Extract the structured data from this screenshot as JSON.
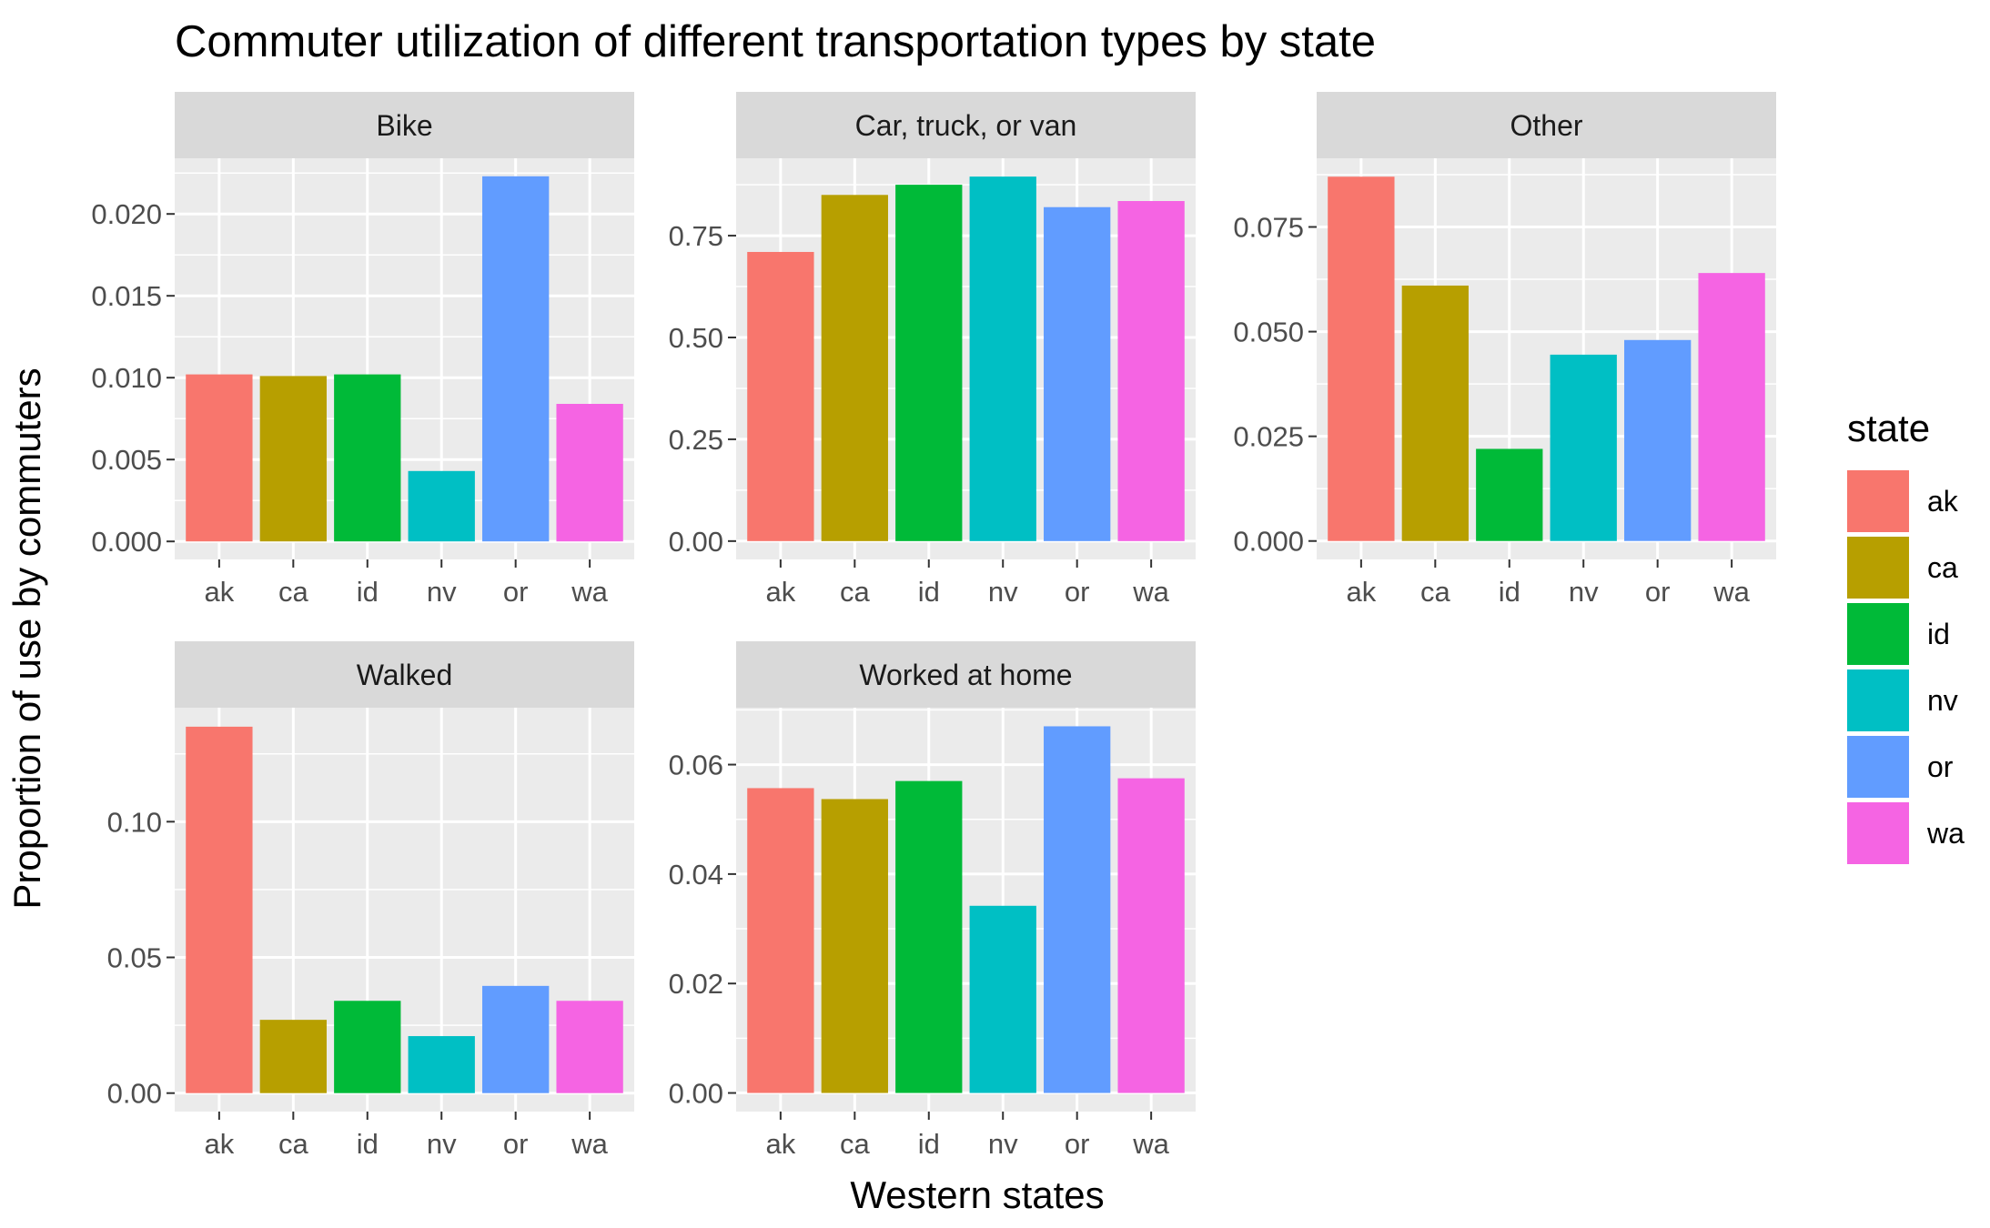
{
  "chart_data": {
    "type": "bar",
    "title": "Commuter utilization of different transportation types by state",
    "xlabel": "Western states",
    "ylabel": "Proportion of use by commuters",
    "categories": [
      "ak",
      "ca",
      "id",
      "nv",
      "or",
      "wa"
    ],
    "colors": [
      "#F8766D",
      "#B79F00",
      "#00BA38",
      "#00BFC4",
      "#619CFF",
      "#F564E3"
    ],
    "legend": {
      "title": "state",
      "entries": [
        "ak",
        "ca",
        "id",
        "nv",
        "or",
        "wa"
      ],
      "placement": "right"
    },
    "grid": true,
    "facets": [
      {
        "name": "Bike",
        "values": [
          0.0102,
          0.0101,
          0.0102,
          0.0043,
          0.0223,
          0.0084
        ],
        "ylim": [
          -0.0011,
          0.0234
        ],
        "yticks": [
          0.0,
          0.005,
          0.01,
          0.015,
          0.02
        ],
        "ytick_labels": [
          "0.000",
          "0.005",
          "0.010",
          "0.015",
          "0.020"
        ]
      },
      {
        "name": "Car, truck, or van",
        "values": [
          0.71,
          0.85,
          0.875,
          0.895,
          0.82,
          0.835
        ],
        "ylim": [
          -0.045,
          0.94
        ],
        "yticks": [
          0.0,
          0.25,
          0.5,
          0.75
        ],
        "ytick_labels": [
          "0.00",
          "0.25",
          "0.50",
          "0.75"
        ]
      },
      {
        "name": "Other",
        "values": [
          0.087,
          0.061,
          0.022,
          0.0445,
          0.048,
          0.064
        ],
        "ylim": [
          -0.0044,
          0.0914
        ],
        "yticks": [
          0.0,
          0.025,
          0.05,
          0.075
        ],
        "ytick_labels": [
          "0.000",
          "0.025",
          "0.050",
          "0.075"
        ]
      },
      {
        "name": "Walked",
        "values": [
          0.135,
          0.027,
          0.034,
          0.021,
          0.0395,
          0.034
        ],
        "ylim": [
          -0.0068,
          0.142
        ],
        "yticks": [
          0.0,
          0.05,
          0.1
        ],
        "ytick_labels": [
          "0.00",
          "0.05",
          "0.10"
        ]
      },
      {
        "name": "Worked at home",
        "values": [
          0.0557,
          0.0537,
          0.057,
          0.0342,
          0.067,
          0.0575
        ],
        "ylim": [
          -0.0034,
          0.0704
        ],
        "yticks": [
          0.0,
          0.02,
          0.04,
          0.06
        ],
        "ytick_labels": [
          "0.00",
          "0.02",
          "0.04",
          "0.06"
        ]
      }
    ]
  }
}
